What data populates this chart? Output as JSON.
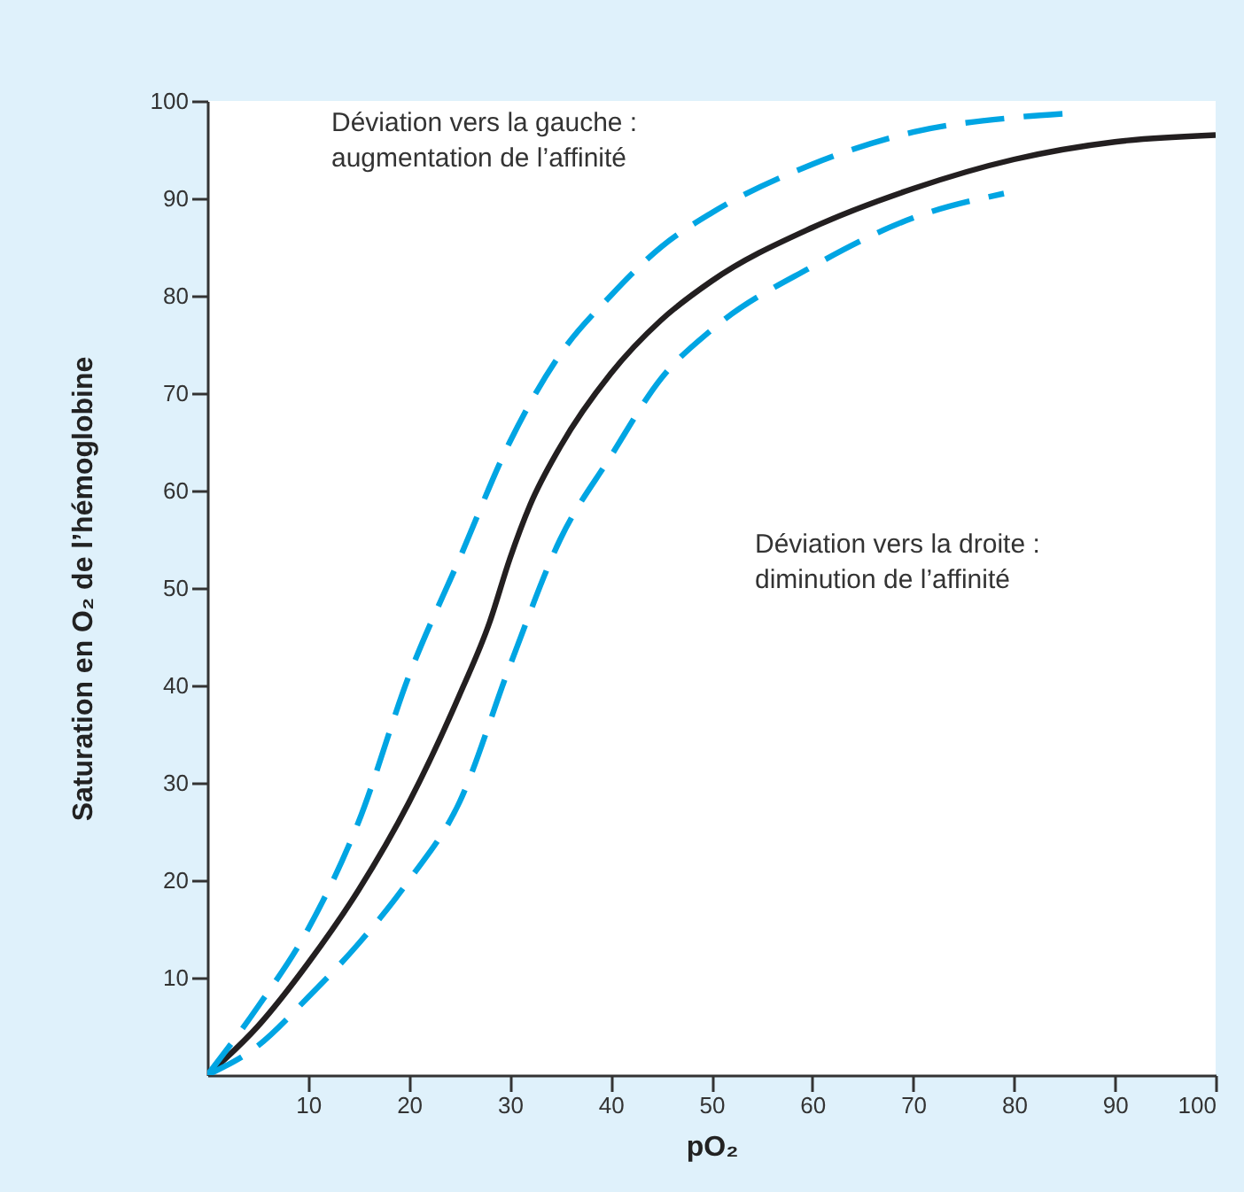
{
  "chart_data": {
    "type": "line",
    "xlabel": "pO₂",
    "ylabel": "Saturation en O₂ de l’hémoglobine",
    "xlim": [
      0,
      100
    ],
    "ylim": [
      0,
      100
    ],
    "xticks": [
      10,
      20,
      30,
      40,
      50,
      60,
      70,
      80,
      90,
      100
    ],
    "yticks": [
      10,
      20,
      30,
      40,
      50,
      60,
      70,
      80,
      90,
      100
    ],
    "grid": false,
    "marker": "none",
    "series": [
      {
        "color": "#231f20",
        "line_style": "solid",
        "x": [
          0,
          5,
          10,
          15,
          20,
          25,
          28,
          30,
          32,
          35,
          40,
          45,
          50,
          60,
          70,
          80,
          90,
          100
        ],
        "values": [
          0,
          5,
          11.5,
          19,
          28,
          39,
          46.5,
          53,
          58.5,
          64.5,
          72,
          77.5,
          81.5,
          87,
          91,
          94,
          95.8,
          96.5
        ]
      },
      {
        "color": "#00a5e3",
        "line_style": "dashed",
        "x": [
          0,
          5,
          10,
          15,
          20,
          25,
          30,
          35,
          40,
          45,
          50,
          60,
          70,
          80,
          85
        ],
        "values": [
          0,
          7,
          15,
          26,
          41,
          53,
          65,
          74,
          80,
          85,
          88.5,
          93.5,
          96.8,
          98.3,
          98.7
        ]
      },
      {
        "color": "#00a5e3",
        "line_style": "dashed",
        "x": [
          0,
          5,
          10,
          15,
          20,
          25,
          30,
          35,
          40,
          45,
          50,
          60,
          70,
          79
        ],
        "values": [
          0,
          3,
          8,
          13.5,
          20,
          28,
          42,
          55,
          63.5,
          71.5,
          76.5,
          83,
          88,
          90.5
        ]
      }
    ],
    "annotations": [
      "Déviation vers la gauche :\naugmentation de l’affinité",
      "Déviation vers la droite :\ndiminution de l’affinité"
    ]
  }
}
